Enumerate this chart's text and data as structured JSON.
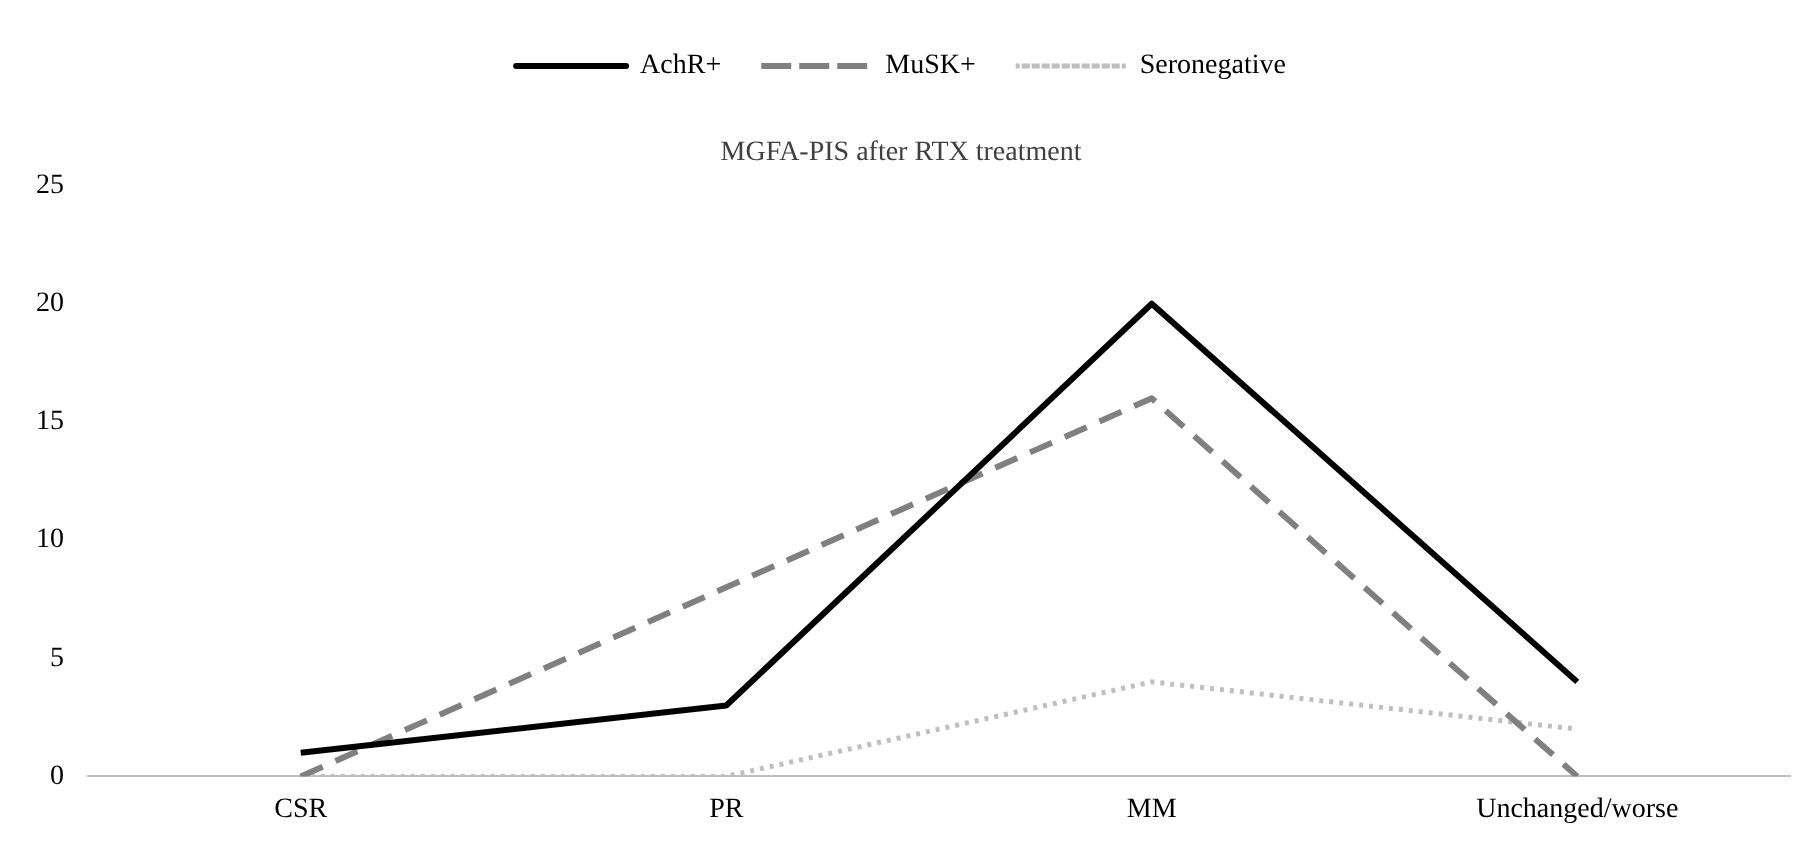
{
  "chart_data": {
    "type": "line",
    "title": "MGFA-PIS after RTX treatment",
    "categories": [
      "CSR",
      "PR",
      "MM",
      "Unchanged/worse"
    ],
    "series": [
      {
        "name": "AchR+",
        "color": "#000000",
        "values": [
          1,
          3,
          20,
          4
        ],
        "line_style": "solid"
      },
      {
        "name": "MuSK+",
        "color": "#808080",
        "values": [
          0,
          8,
          16,
          0
        ],
        "line_style": "dashed"
      },
      {
        "name": "Seronegative",
        "color": "#bfbfbf",
        "values": [
          0,
          0,
          4,
          2
        ],
        "line_style": "dotted"
      }
    ],
    "ylim": [
      0,
      25
    ],
    "yticks": [
      0,
      5,
      10,
      15,
      20,
      25
    ],
    "grid": false,
    "legend": "top",
    "marker": "none"
  }
}
